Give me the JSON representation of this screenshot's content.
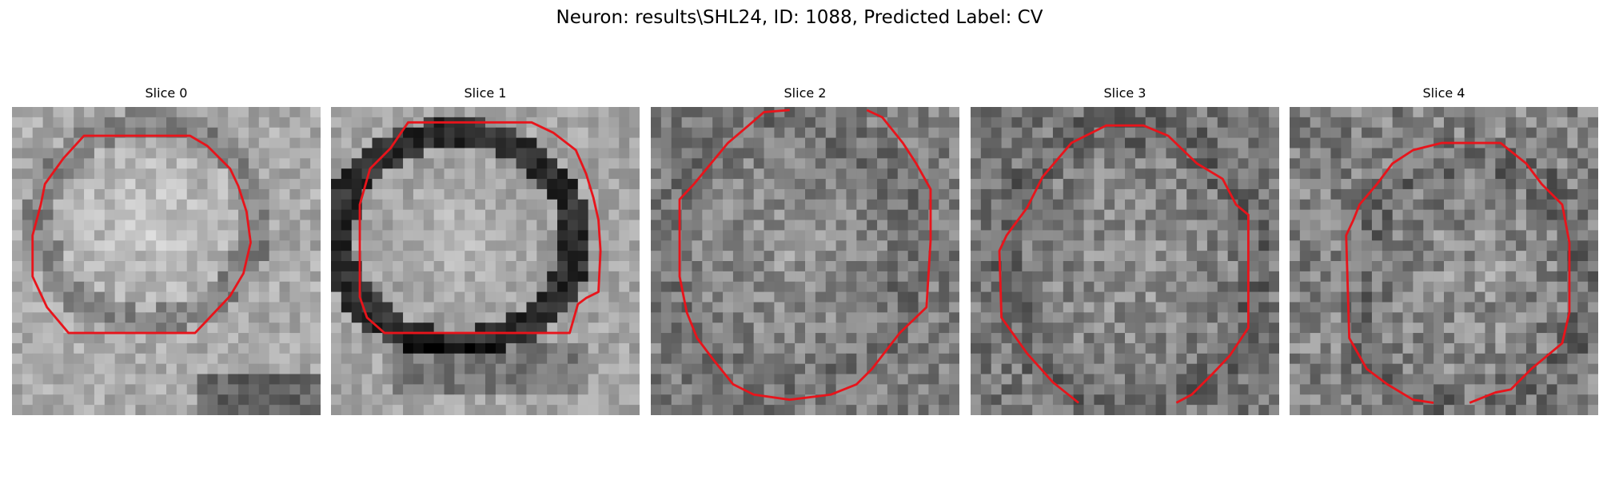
{
  "figure": {
    "title": "Neuron: results\\SHL24, ID: 1088, Predicted Label: CV",
    "contour_color": "#e8141b"
  },
  "panels": [
    {
      "title": "Slice 0",
      "image_description": "grayscale microscopy slice, bright round cell body"
    },
    {
      "title": "Slice 1",
      "image_description": "grayscale microscopy slice, bright cell body with dark rim"
    },
    {
      "title": "Slice 2",
      "image_description": "grayscale microscopy slice, noisy mid-gray texture"
    },
    {
      "title": "Slice 3",
      "image_description": "grayscale microscopy slice, noisy texture with dark speckles"
    },
    {
      "title": "Slice 4",
      "image_description": "grayscale microscopy slice, noisy texture with dark speckles"
    }
  ]
}
